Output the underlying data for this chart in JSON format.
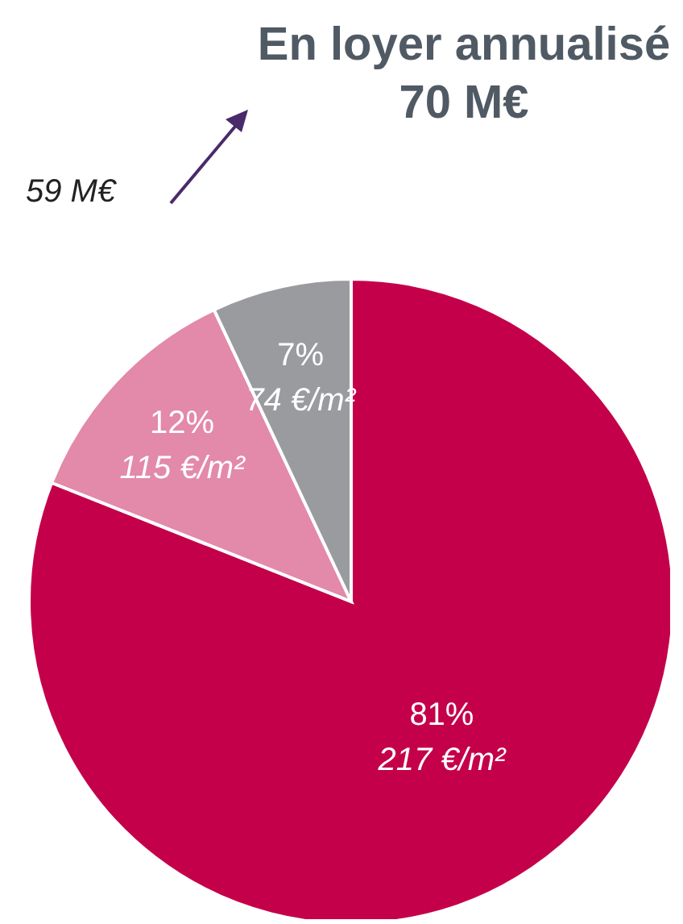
{
  "chart_data": {
    "type": "pie",
    "title": "En loyer annualisé",
    "subtitle": "70 M€",
    "annotations": [
      "59 M€"
    ],
    "categories": [
      "217 €/m²",
      "115 €/m²",
      "74 €/m²"
    ],
    "values": [
      81,
      12,
      7
    ],
    "value_labels": [
      "81%",
      "12%",
      "7%"
    ],
    "colors": [
      "#c4004a",
      "#e389a9",
      "#9a9b9f"
    ],
    "legend": false
  }
}
